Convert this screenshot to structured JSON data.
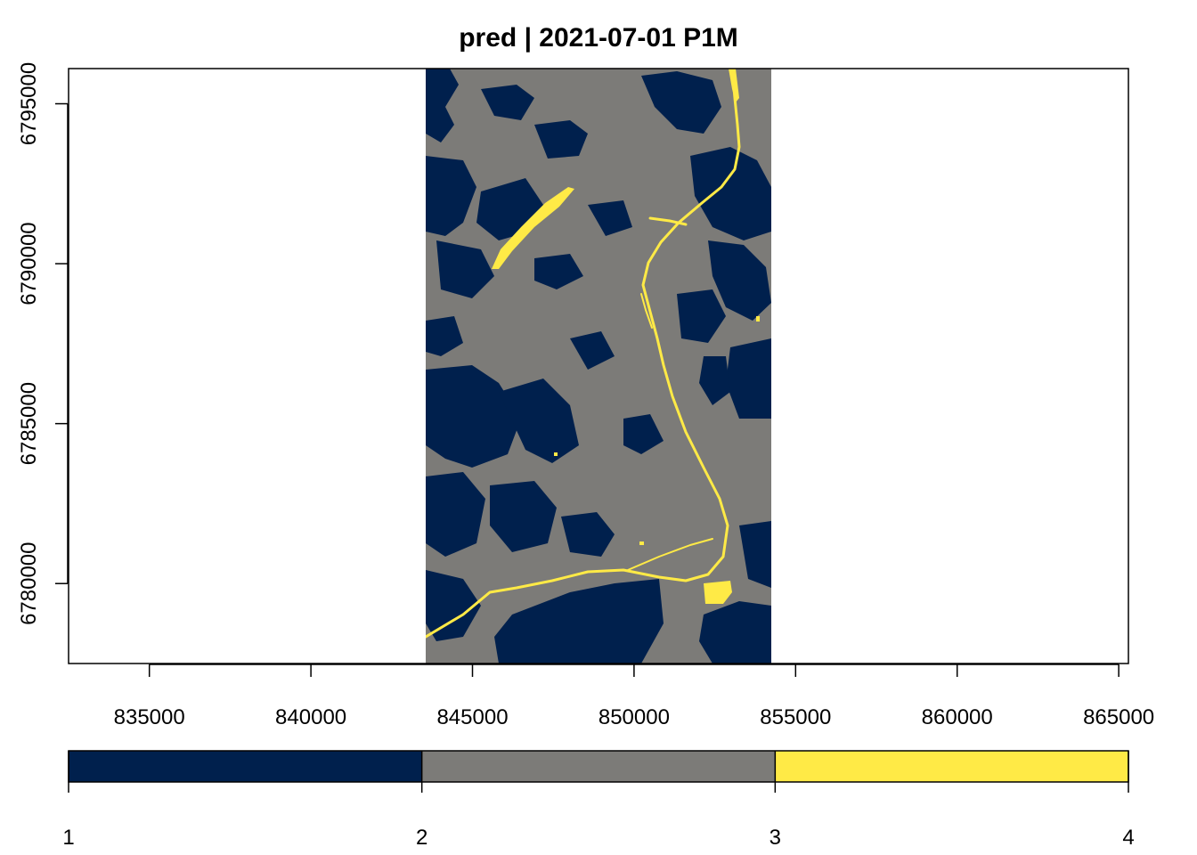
{
  "title": "pred | 2021-07-01 P1M",
  "map": {
    "x_range": [
      832500,
      865300
    ],
    "y_range": [
      6777500,
      6796100
    ],
    "raster_extent": {
      "xmin": 843500,
      "xmax": 854300,
      "ymin": 6777500,
      "ymax": 6796100
    },
    "x_ticks": [
      {
        "value": 835000,
        "label": "835000"
      },
      {
        "value": 840000,
        "label": "840000"
      },
      {
        "value": 845000,
        "label": "845000"
      },
      {
        "value": 850000,
        "label": "850000"
      },
      {
        "value": 855000,
        "label": "855000"
      },
      {
        "value": 860000,
        "label": "860000"
      },
      {
        "value": 865000,
        "label": "865000"
      }
    ],
    "y_ticks": [
      {
        "value": 6780000,
        "label": "6780000"
      },
      {
        "value": 6785000,
        "label": "6785000"
      },
      {
        "value": 6790000,
        "label": "6790000"
      },
      {
        "value": 6795000,
        "label": "6795000"
      }
    ],
    "class_colors": {
      "1": "#00204d",
      "2": "#7c7b78",
      "3": "#ffea46"
    }
  },
  "legend": {
    "breaks": [
      "1",
      "2",
      "3",
      "4"
    ],
    "colors": [
      "#00204d",
      "#7c7b78",
      "#ffea46"
    ]
  }
}
